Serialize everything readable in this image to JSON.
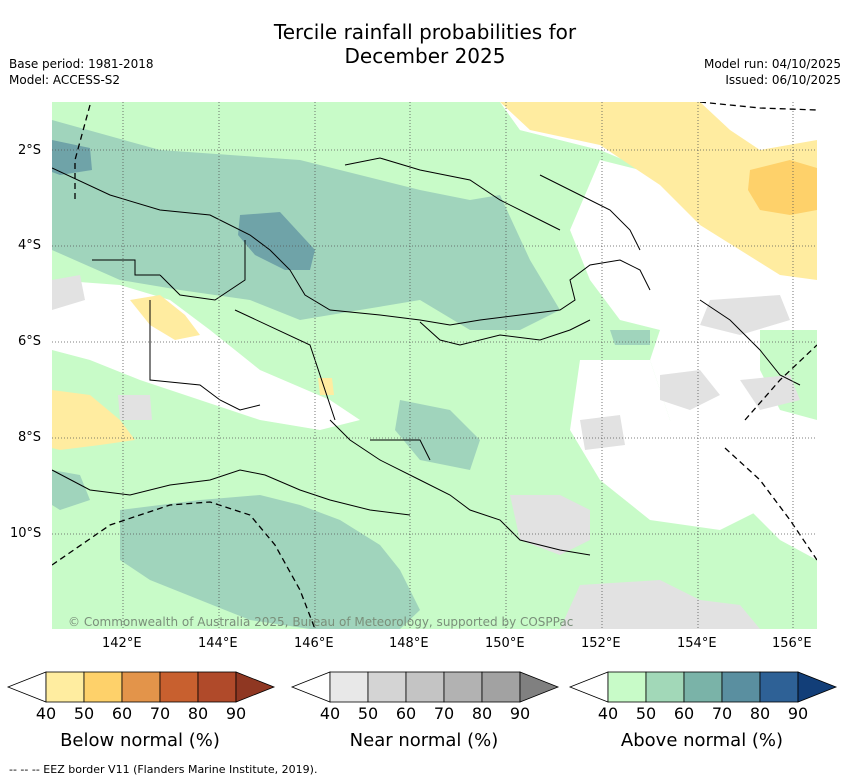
{
  "title_line1": "Tercile rainfall probabilities for",
  "title_line2": "December 2025",
  "meta_left": {
    "base_period": "Base period: 1981-2018",
    "model": "Model: ACCESS-S2"
  },
  "meta_right": {
    "model_run": "Model run: 04/10/2025",
    "issued": "Issued: 06/10/2025"
  },
  "lat_labels": [
    "2°S",
    "4°S",
    "6°S",
    "8°S",
    "10°S"
  ],
  "lon_labels": [
    "142°E",
    "144°E",
    "146°E",
    "148°E",
    "150°E",
    "152°E",
    "154°E",
    "156°E"
  ],
  "copyright": "© Commonwealth of Australia 2025, Bureau of Meteorology, supported by COSPPac",
  "colorbars": [
    {
      "label": "Below normal (%)",
      "ticks": [
        "40",
        "50",
        "60",
        "70",
        "80",
        "90"
      ],
      "colors": [
        "#ffffff",
        "#ffeda0",
        "#fed16a",
        "#e3944a",
        "#c8602f",
        "#b04a2a",
        "#8f3722"
      ]
    },
    {
      "label": "Near normal (%)",
      "ticks": [
        "40",
        "50",
        "60",
        "70",
        "80",
        "90"
      ],
      "colors": [
        "#ffffff",
        "#e8e8e8",
        "#d4d4d4",
        "#c4c4c4",
        "#b2b2b2",
        "#a2a2a2",
        "#808080"
      ]
    },
    {
      "label": "Above normal (%)",
      "ticks": [
        "40",
        "50",
        "60",
        "70",
        "80",
        "90"
      ],
      "colors": [
        "#ffffff",
        "#c8fbc8",
        "#a2d8b8",
        "#7ab3a8",
        "#5a8fa0",
        "#2e6196",
        "#123e78"
      ]
    }
  ],
  "footer": "-- --  -- EEZ border V11 (Flanders Marine Institute, 2019).",
  "colors": {
    "above50": "#c8fbc8",
    "above60": "#a0d4bc",
    "above70": "#6fa3a8",
    "near50": "#e2e2e2",
    "below50": "#ffeca0",
    "below60": "#fed16a"
  }
}
